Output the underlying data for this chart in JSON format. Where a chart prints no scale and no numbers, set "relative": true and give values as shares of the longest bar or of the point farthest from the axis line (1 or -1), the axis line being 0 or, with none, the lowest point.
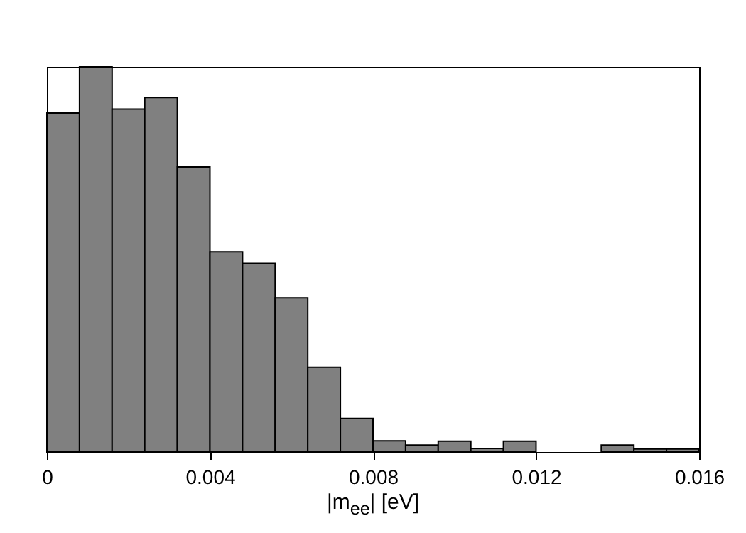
{
  "chart_data": {
    "type": "bar",
    "xlabel": "|m$_{ee}$| [eV]",
    "relative": true,
    "color": "#808080",
    "x": [
      0.0004,
      0.0012,
      0.002,
      0.0028,
      0.0036,
      0.0044,
      0.0052,
      0.006,
      0.0068,
      0.0076,
      0.0084,
      0.0092,
      0.01,
      0.0108,
      0.0116,
      0.0124,
      0.0132,
      0.014,
      0.0148,
      0.0156
    ],
    "values": [
      0.88,
      1,
      0.89,
      0.92,
      0.74,
      0.52,
      0.49,
      0.4,
      0.22,
      0.087,
      0.029,
      0.018,
      0.028,
      0.009,
      0.028,
      0,
      0,
      0.018,
      0.008,
      0.008
    ],
    "xlim": [
      0,
      0.016
    ],
    "xticks": [
      0,
      0.004,
      0.008,
      0.012,
      0.016
    ]
  }
}
